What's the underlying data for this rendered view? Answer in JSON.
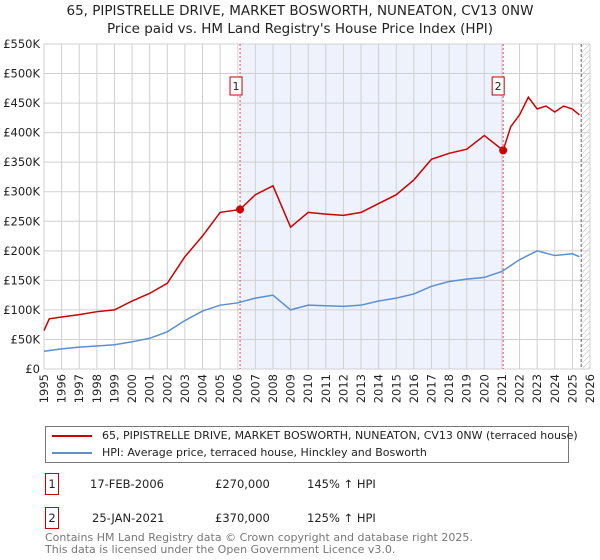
{
  "header": {
    "title": "65, PIPISTRELLE DRIVE, MARKET BOSWORTH, NUNEATON, CV13 0NW",
    "subtitle": "Price paid vs. HM Land Registry's House Price Index (HPI)"
  },
  "chart_data": {
    "type": "line",
    "xlim": [
      1995,
      2026
    ],
    "ylim": [
      0,
      550000
    ],
    "x_ticks": [
      "1995",
      "1996",
      "1997",
      "1998",
      "1999",
      "2000",
      "2001",
      "2002",
      "2003",
      "2004",
      "2005",
      "2006",
      "2007",
      "2008",
      "2009",
      "2010",
      "2011",
      "2012",
      "2013",
      "2014",
      "2015",
      "2016",
      "2017",
      "2018",
      "2019",
      "2020",
      "2021",
      "2022",
      "2023",
      "2024",
      "2025",
      "2026"
    ],
    "y_ticks": [
      {
        "v": 0,
        "label": "£0"
      },
      {
        "v": 50000,
        "label": "£50K"
      },
      {
        "v": 100000,
        "label": "£100K"
      },
      {
        "v": 150000,
        "label": "£150K"
      },
      {
        "v": 200000,
        "label": "£200K"
      },
      {
        "v": 250000,
        "label": "£250K"
      },
      {
        "v": 300000,
        "label": "£300K"
      },
      {
        "v": 350000,
        "label": "£350K"
      },
      {
        "v": 400000,
        "label": "£400K"
      },
      {
        "v": 450000,
        "label": "£450K"
      },
      {
        "v": 500000,
        "label": "£500K"
      },
      {
        "v": 550000,
        "label": "£550K"
      }
    ],
    "shaded_range": [
      2006.13,
      2021.07
    ],
    "forecast_from": 2025.5,
    "series": [
      {
        "name": "65, PIPISTRELLE DRIVE, MARKET BOSWORTH, NUNEATON, CV13 0NW (terraced house)",
        "color": "#cc0000",
        "x": [
          1995,
          1995.3,
          1996,
          1997,
          1998,
          1999,
          2000,
          2001,
          2002,
          2003,
          2004,
          2005,
          2006.13,
          2007,
          2008,
          2009,
          2010,
          2011,
          2012,
          2013,
          2014,
          2015,
          2016,
          2017,
          2018,
          2019,
          2020,
          2021.07,
          2021.5,
          2022,
          2022.5,
          2023,
          2023.5,
          2024,
          2024.5,
          2025,
          2025.4
        ],
        "y": [
          65000,
          85000,
          88000,
          92000,
          97000,
          100000,
          115000,
          128000,
          145000,
          190000,
          225000,
          265000,
          270000,
          295000,
          310000,
          240000,
          265000,
          262000,
          260000,
          265000,
          280000,
          295000,
          320000,
          355000,
          365000,
          372000,
          395000,
          370000,
          410000,
          430000,
          460000,
          440000,
          445000,
          435000,
          445000,
          440000,
          430000
        ]
      },
      {
        "name": "HPI: Average price, terraced house, Hinckley and Bosworth",
        "color": "#5b8fd0",
        "x": [
          1995,
          1996,
          1997,
          1998,
          1999,
          2000,
          2001,
          2002,
          2003,
          2004,
          2005,
          2006,
          2007,
          2008,
          2009,
          2010,
          2011,
          2012,
          2013,
          2014,
          2015,
          2016,
          2017,
          2018,
          2019,
          2020,
          2021,
          2022,
          2023,
          2024,
          2025,
          2025.4
        ],
        "y": [
          30000,
          34000,
          37000,
          39000,
          41000,
          46000,
          52000,
          63000,
          82000,
          98000,
          108000,
          112000,
          120000,
          125000,
          100000,
          108000,
          107000,
          106000,
          108000,
          115000,
          120000,
          127000,
          140000,
          148000,
          152000,
          155000,
          165000,
          185000,
          200000,
          192000,
          195000,
          190000
        ]
      }
    ],
    "sales": [
      {
        "id": "1",
        "x": 2006.13,
        "price": 270000
      },
      {
        "id": "2",
        "x": 2021.07,
        "price": 370000
      }
    ]
  },
  "legend": {
    "items": [
      "65, PIPISTRELLE DRIVE, MARKET BOSWORTH, NUNEATON, CV13 0NW (terraced house)",
      "HPI: Average price, terraced house, Hinckley and Bosworth"
    ]
  },
  "transactions": [
    {
      "id": "1",
      "date": "17-FEB-2006",
      "price": "£270,000",
      "hpi": "145% ↑ HPI"
    },
    {
      "id": "2",
      "date": "25-JAN-2021",
      "price": "£370,000",
      "hpi": "125% ↑ HPI"
    }
  ],
  "footer": {
    "line1": "Contains HM Land Registry data © Crown copyright and database right 2025.",
    "line2": "This data is licensed under the Open Government Licence v3.0."
  }
}
